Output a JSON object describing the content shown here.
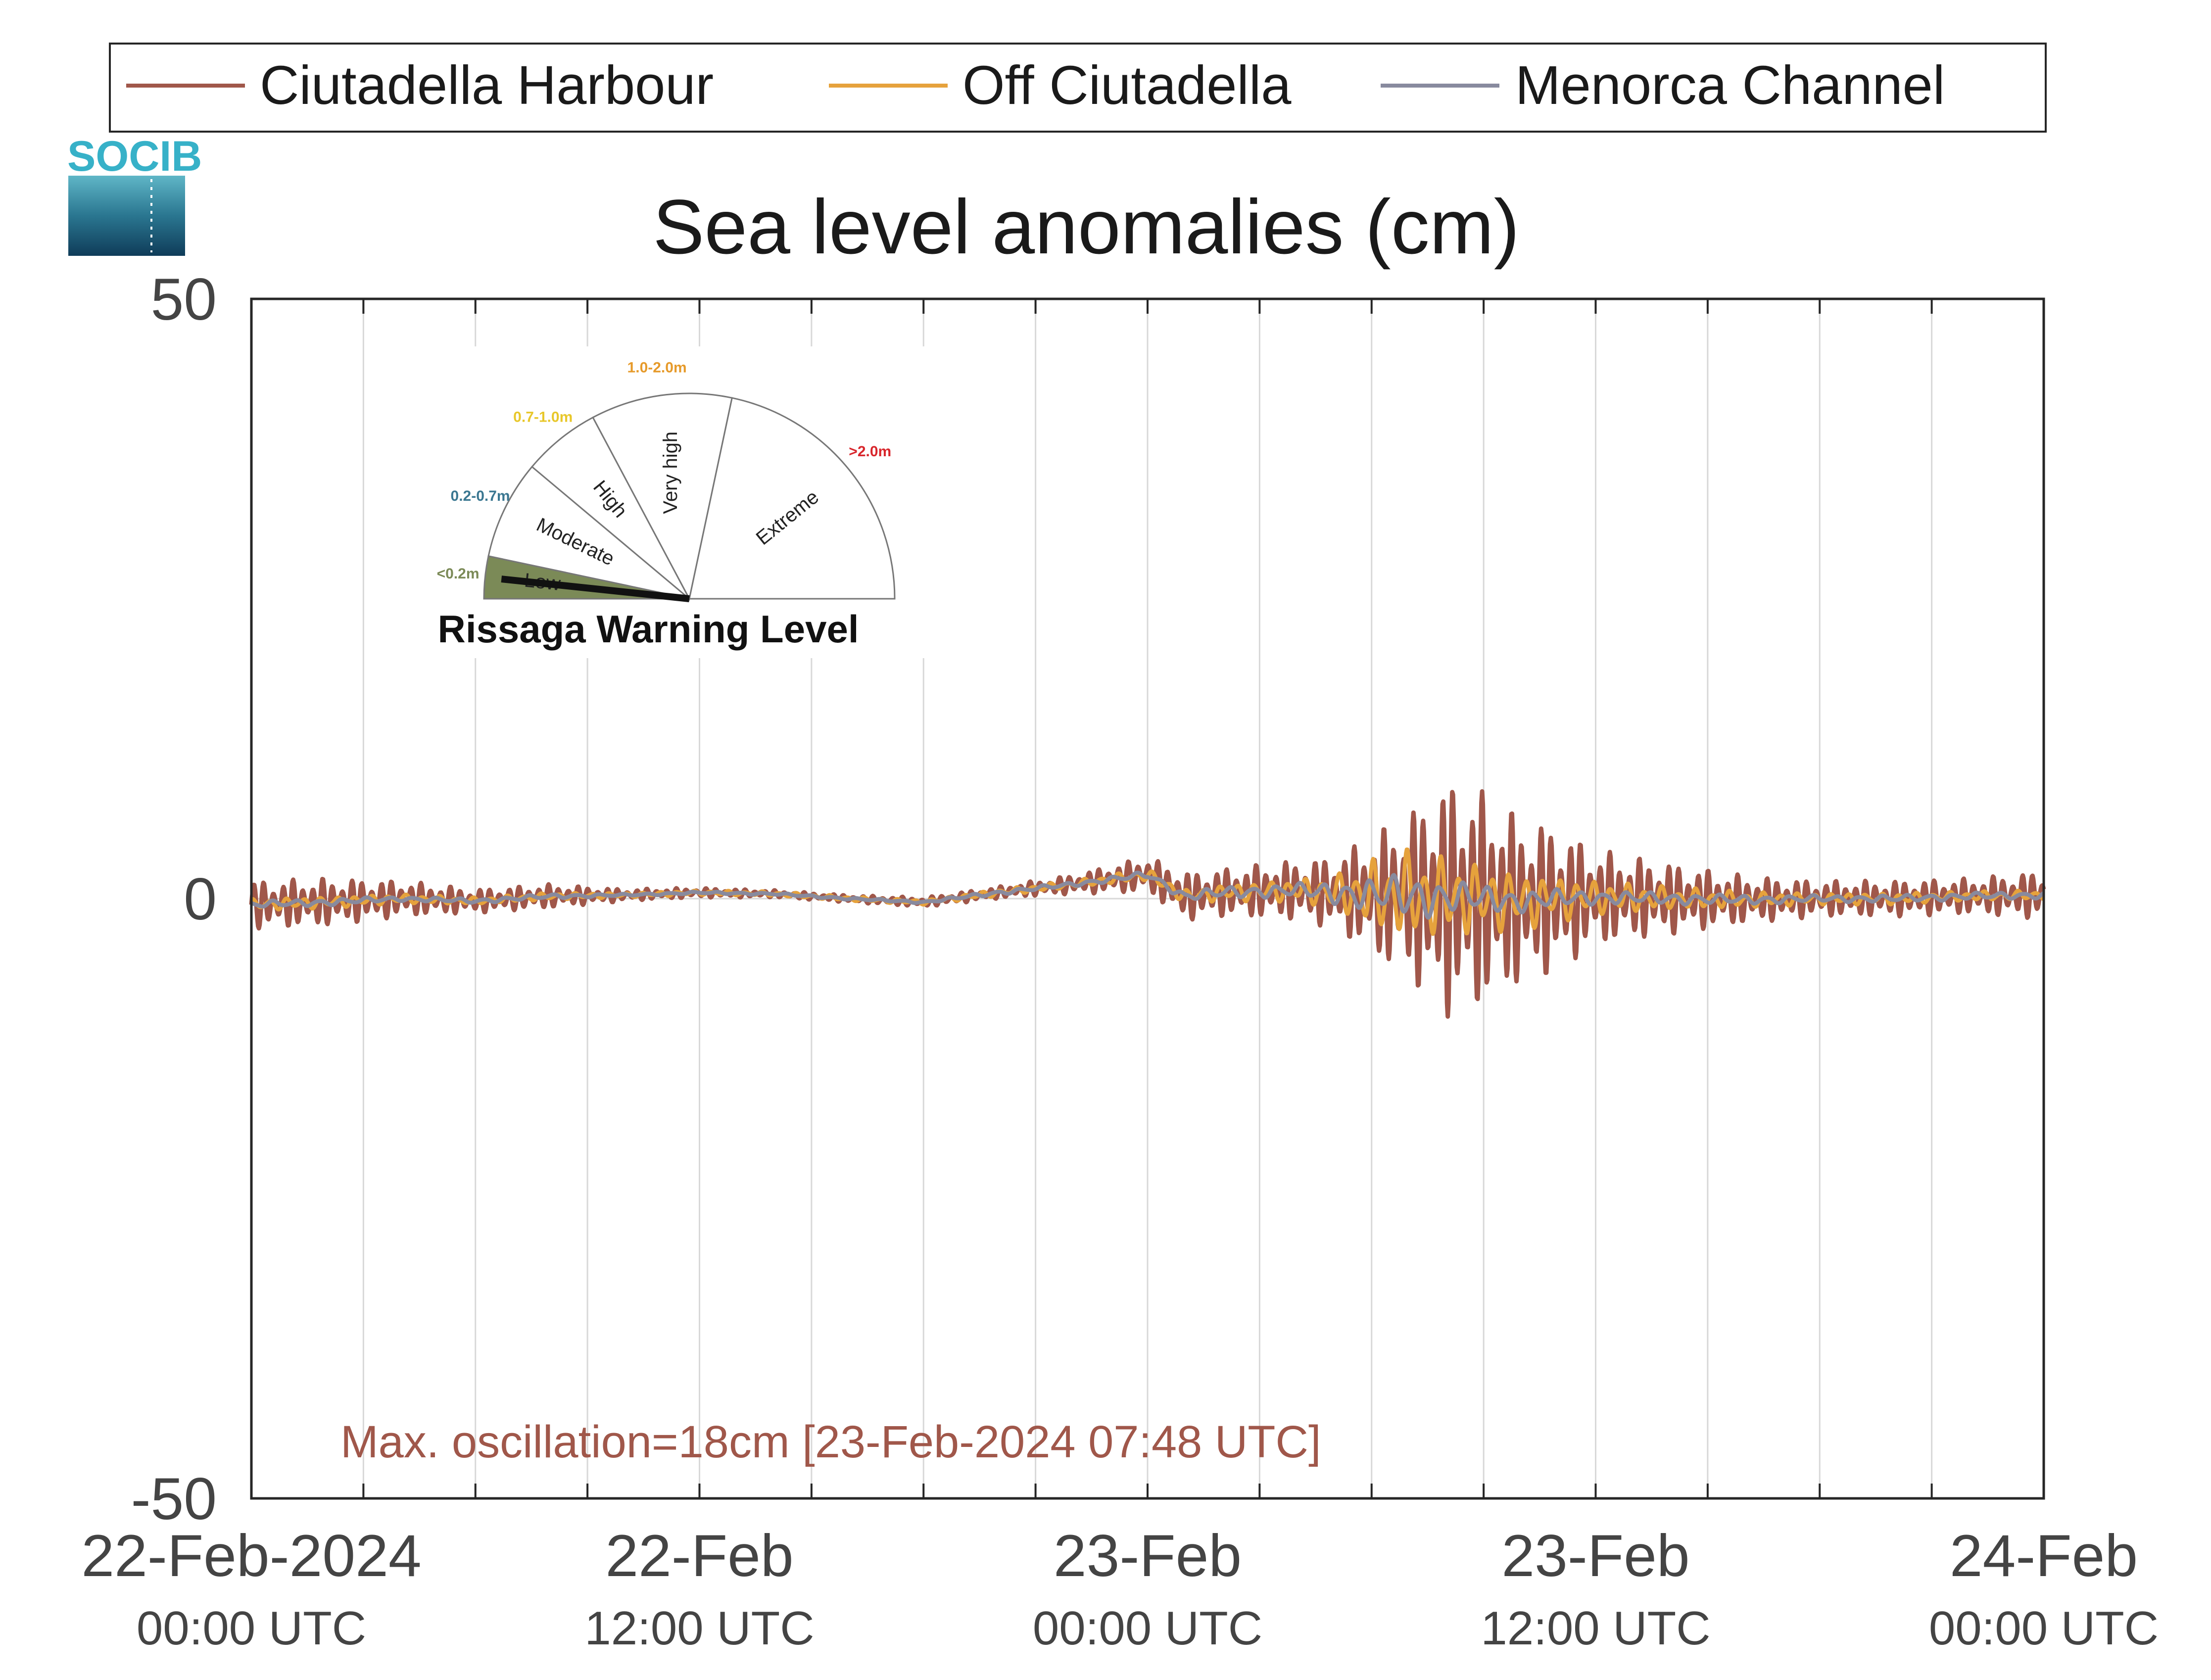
{
  "logo": {
    "text": "SOCIB"
  },
  "chart_data": {
    "type": "line",
    "title": "Sea level anomalies (cm)",
    "xlabel": "",
    "ylabel": "",
    "ylim": [
      -50,
      50
    ],
    "y_ticks": [
      "50",
      "0",
      "-50"
    ],
    "x_ticks": [
      {
        "date": "22-Feb-2024",
        "time": "00:00 UTC"
      },
      {
        "date": "22-Feb",
        "time": "12:00 UTC"
      },
      {
        "date": "23-Feb",
        "time": "00:00 UTC"
      },
      {
        "date": "23-Feb",
        "time": "12:00 UTC"
      },
      {
        "date": "24-Feb",
        "time": "00:00 UTC"
      }
    ],
    "x_range_hours": [
      0,
      48
    ],
    "grid": "vertical",
    "legend_position": "top",
    "x_hours": [
      0,
      2,
      4,
      6,
      8,
      10,
      12,
      14,
      16,
      18,
      20,
      22,
      24,
      25,
      26,
      28,
      29,
      30,
      31,
      32,
      33,
      34,
      35,
      36,
      38,
      40,
      42,
      44,
      46,
      48
    ],
    "series": [
      {
        "name": "Ciutadella Harbour",
        "color": "#a0574a",
        "envelope": [
          2,
          2,
          1.5,
          1,
          1,
          0.5,
          0.4,
          0.3,
          0.3,
          0.4,
          0.5,
          0.8,
          1.5,
          2,
          2,
          2.5,
          3,
          5,
          7,
          10,
          9,
          7,
          6,
          4,
          3,
          2,
          1.5,
          1.5,
          1.5,
          2
        ]
      },
      {
        "name": "Off Ciutadella",
        "color": "#e6a23c",
        "envelope": [
          0.5,
          0.5,
          0.4,
          0.3,
          0.3,
          0.2,
          0.2,
          0.2,
          0.2,
          0.2,
          0.3,
          0.3,
          0.5,
          0.6,
          0.7,
          1,
          1.5,
          3,
          4,
          3.5,
          3,
          2.5,
          2,
          1.5,
          1,
          0.7,
          0.5,
          0.5,
          0.4,
          0.4
        ]
      },
      {
        "name": "Menorca Channel",
        "color": "#888a9e",
        "envelope": [
          0.3,
          0.3,
          0.2,
          0.2,
          0.2,
          0.1,
          0.1,
          0.1,
          0.1,
          0.1,
          0.2,
          0.2,
          0.3,
          0.4,
          0.5,
          0.6,
          1,
          1.5,
          2,
          1.5,
          1.2,
          1,
          0.8,
          0.6,
          0.5,
          0.4,
          0.3,
          0.3,
          0.3,
          0.3
        ]
      }
    ],
    "baseline": [
      -0.5,
      -0.3,
      0,
      -0.2,
      0.2,
      0.3,
      0.5,
      0.4,
      0,
      -0.3,
      0.5,
      1.2,
      2,
      0.2,
      0.5,
      0.7,
      0.5,
      0.3,
      0.2,
      0.1,
      0,
      -0.2,
      0,
      0.1,
      0,
      -0.1,
      0,
      0,
      0.2,
      0.3
    ],
    "annotation": "Max. oscillation=18cm [23-Feb-2024 07:48 UTC]",
    "annotation_color": "#a0574a"
  },
  "gauge": {
    "title": "Rissaga Warning Level",
    "level": "Low",
    "sectors": [
      {
        "label": "Low",
        "range": "<0.2m",
        "range_color": "#7b8a57",
        "fill": "#7b8a57"
      },
      {
        "label": "Moderate",
        "range": "0.2-0.7m",
        "range_color": "#3a7791",
        "fill": "none"
      },
      {
        "label": "High",
        "range": "0.7-1.0m",
        "range_color": "#e8c72a",
        "fill": "none"
      },
      {
        "label": "Very high",
        "range": "1.0-2.0m",
        "range_color": "#e69a2a",
        "fill": "none"
      },
      {
        "label": "Extreme",
        "range": ">2.0m",
        "range_color": "#d8262c",
        "fill": "none"
      }
    ]
  }
}
